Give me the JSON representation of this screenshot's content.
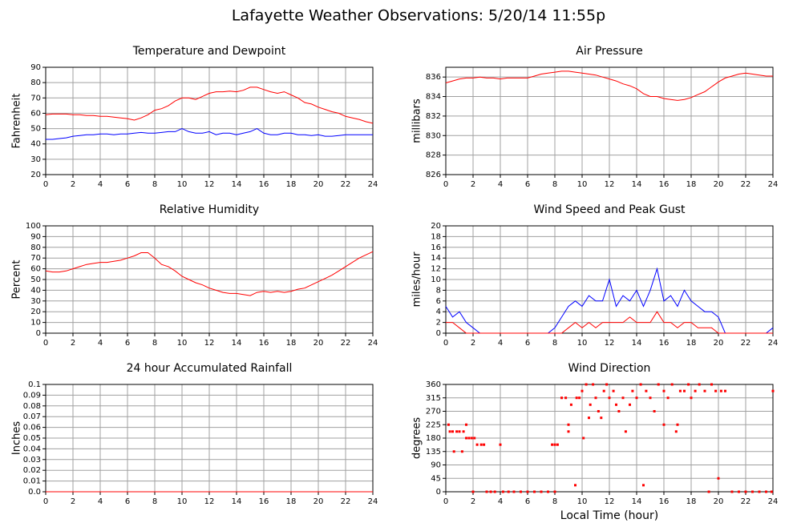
{
  "title": "Lafayette Weather Observations: 5/20/14 11:55p",
  "chart_data": [
    {
      "type": "line",
      "title": "Temperature and Dewpoint",
      "y_label": "Fahrenheit",
      "xlim": [
        0,
        24
      ],
      "xticks": [
        0,
        2,
        4,
        6,
        8,
        10,
        12,
        14,
        16,
        18,
        20,
        22,
        24
      ],
      "ylim": [
        20,
        90
      ],
      "yticks": [
        20,
        30,
        40,
        50,
        60,
        70,
        80,
        90
      ],
      "grid": true,
      "x": [
        0,
        0.5,
        1,
        1.5,
        2,
        2.5,
        3,
        3.5,
        4,
        4.5,
        5,
        5.5,
        6,
        6.5,
        7,
        7.5,
        8,
        8.5,
        9,
        9.5,
        10,
        10.5,
        11,
        11.5,
        12,
        12.5,
        13,
        13.5,
        14,
        14.5,
        15,
        15.5,
        16,
        16.5,
        17,
        17.5,
        18,
        18.5,
        19,
        19.5,
        20,
        20.5,
        21,
        21.5,
        22,
        22.5,
        23,
        23.5,
        24
      ],
      "series": [
        {
          "color": "#ff0000",
          "values": [
            59,
            59.5,
            59.5,
            59.5,
            59,
            59,
            58.5,
            58.5,
            58,
            58,
            57.5,
            57,
            56.5,
            55.5,
            57,
            59,
            62,
            63,
            65,
            68,
            70,
            70,
            69,
            71,
            73,
            74,
            74,
            74.5,
            74,
            75,
            77,
            77,
            75.5,
            74,
            73,
            74,
            72,
            70,
            67,
            66,
            64,
            62.5,
            61,
            60,
            58,
            57,
            56,
            54.5,
            53.5
          ]
        },
        {
          "color": "#0000ff",
          "values": [
            43,
            43,
            43.5,
            44,
            45,
            45.5,
            46,
            46,
            46.5,
            46.5,
            46,
            46.5,
            46.5,
            47,
            47.5,
            47,
            47,
            47.5,
            48,
            48,
            50,
            48,
            47,
            47,
            48,
            46,
            47,
            47,
            46,
            47,
            48,
            50,
            47,
            46,
            46,
            47,
            47,
            46,
            46,
            45.5,
            46,
            45,
            45,
            45.5,
            46,
            46,
            46,
            46,
            46
          ]
        }
      ]
    },
    {
      "type": "line",
      "title": "Air Pressure",
      "y_label": "millibars",
      "xlim": [
        0,
        24
      ],
      "xticks": [
        0,
        2,
        4,
        6,
        8,
        10,
        12,
        14,
        16,
        18,
        20,
        22,
        24
      ],
      "ylim": [
        826,
        837
      ],
      "yticks": [
        826,
        828,
        830,
        832,
        834,
        836
      ],
      "grid": true,
      "x": [
        0,
        0.5,
        1,
        1.5,
        2,
        2.5,
        3,
        3.5,
        4,
        4.5,
        5,
        5.5,
        6,
        6.5,
        7,
        7.5,
        8,
        8.5,
        9,
        9.5,
        10,
        10.5,
        11,
        11.5,
        12,
        12.5,
        13,
        13.5,
        14,
        14.5,
        15,
        15.5,
        16,
        16.5,
        17,
        17.5,
        18,
        18.5,
        19,
        19.5,
        20,
        20.5,
        21,
        21.5,
        22,
        22.5,
        23,
        23.5,
        24
      ],
      "series": [
        {
          "color": "#ff0000",
          "values": [
            835.4,
            835.6,
            835.8,
            835.9,
            835.9,
            836,
            835.9,
            835.9,
            835.8,
            835.9,
            835.9,
            835.9,
            835.9,
            836.1,
            836.3,
            836.4,
            836.5,
            836.6,
            836.6,
            836.5,
            836.4,
            836.3,
            836.2,
            836,
            835.8,
            835.6,
            835.3,
            835.1,
            834.8,
            834.3,
            834,
            834,
            833.8,
            833.7,
            833.6,
            833.7,
            833.9,
            834.2,
            834.5,
            835,
            835.5,
            835.9,
            836.1,
            836.3,
            836.4,
            836.3,
            836.2,
            836.1,
            836.1
          ]
        }
      ]
    },
    {
      "type": "line",
      "title": "Relative Humidity",
      "y_label": "Percent",
      "xlim": [
        0,
        24
      ],
      "xticks": [
        0,
        2,
        4,
        6,
        8,
        10,
        12,
        14,
        16,
        18,
        20,
        22,
        24
      ],
      "ylim": [
        0,
        100
      ],
      "yticks": [
        0,
        10,
        20,
        30,
        40,
        50,
        60,
        70,
        80,
        90,
        100
      ],
      "grid": true,
      "x": [
        0,
        0.5,
        1,
        1.5,
        2,
        2.5,
        3,
        3.5,
        4,
        4.5,
        5,
        5.5,
        6,
        6.5,
        7,
        7.5,
        8,
        8.5,
        9,
        9.5,
        10,
        10.5,
        11,
        11.5,
        12,
        12.5,
        13,
        13.5,
        14,
        14.5,
        15,
        15.5,
        16,
        16.5,
        17,
        17.5,
        18,
        18.5,
        19,
        19.5,
        20,
        20.5,
        21,
        21.5,
        22,
        22.5,
        23,
        23.5,
        24
      ],
      "series": [
        {
          "color": "#ff0000",
          "values": [
            58,
            57,
            57,
            58,
            60,
            62,
            64,
            65,
            66,
            66,
            67,
            68,
            70,
            72,
            75,
            75,
            70,
            64,
            62,
            58,
            53,
            50,
            47,
            45,
            42,
            40,
            38,
            37,
            37,
            36,
            35,
            38,
            39,
            38,
            39,
            38,
            39,
            41,
            42,
            45,
            48,
            51,
            54,
            58,
            62,
            66,
            70,
            73,
            76
          ]
        }
      ]
    },
    {
      "type": "line",
      "title": "Wind Speed and Peak Gust",
      "y_label": "miles/hour",
      "xlim": [
        0,
        24
      ],
      "xticks": [
        0,
        2,
        4,
        6,
        8,
        10,
        12,
        14,
        16,
        18,
        20,
        22,
        24
      ],
      "ylim": [
        0,
        20
      ],
      "yticks": [
        0,
        2,
        4,
        6,
        8,
        10,
        12,
        14,
        16,
        18,
        20
      ],
      "grid": true,
      "x": [
        0,
        0.5,
        1,
        1.5,
        2,
        2.5,
        3,
        3.5,
        4,
        4.5,
        5,
        5.5,
        6,
        6.5,
        7,
        7.5,
        8,
        8.5,
        9,
        9.5,
        10,
        10.5,
        11,
        11.5,
        12,
        12.5,
        13,
        13.5,
        14,
        14.5,
        15,
        15.5,
        16,
        16.5,
        17,
        17.5,
        18,
        18.5,
        19,
        19.5,
        20,
        20.5,
        21,
        21.5,
        22,
        22.5,
        23,
        23.5,
        24
      ],
      "series": [
        {
          "color": "#0000ff",
          "values": [
            5,
            3,
            4,
            2,
            1,
            0,
            0,
            0,
            0,
            0,
            0,
            0,
            0,
            0,
            0,
            0,
            1,
            3,
            5,
            6,
            5,
            7,
            6,
            6,
            10,
            5,
            7,
            6,
            8,
            5,
            8,
            12,
            6,
            7,
            5,
            8,
            6,
            5,
            4,
            4,
            3,
            0,
            0,
            0,
            0,
            0,
            0,
            0,
            1
          ]
        },
        {
          "color": "#ff0000",
          "values": [
            2,
            2,
            1,
            0,
            0,
            0,
            0,
            0,
            0,
            0,
            0,
            0,
            0,
            0,
            0,
            0,
            0,
            0,
            1,
            2,
            1,
            2,
            1,
            2,
            2,
            2,
            2,
            3,
            2,
            2,
            2,
            4,
            2,
            2,
            1,
            2,
            2,
            1,
            1,
            1,
            0,
            0,
            0,
            0,
            0,
            0,
            0,
            0,
            0
          ]
        }
      ]
    },
    {
      "type": "line",
      "title": "24 hour Accumulated Rainfall",
      "y_label": "Inches",
      "xlim": [
        0,
        24
      ],
      "xticks": [
        0,
        2,
        4,
        6,
        8,
        10,
        12,
        14,
        16,
        18,
        20,
        22,
        24
      ],
      "ylim": [
        0,
        0.1
      ],
      "yticks": [
        {
          "value": 0,
          "label": "0.0"
        },
        0.01,
        0.02,
        0.03,
        0.04,
        0.05,
        0.06,
        0.07,
        0.08,
        0.09,
        0.1
      ],
      "grid": true,
      "x": [
        0,
        0.5,
        1,
        1.5,
        2,
        2.5,
        3,
        3.5,
        4,
        4.5,
        5,
        5.5,
        6,
        6.5,
        7,
        7.5,
        8,
        8.5,
        9,
        9.5,
        10,
        10.5,
        11,
        11.5,
        12,
        12.5,
        13,
        13.5,
        14,
        14.5,
        15,
        15.5,
        16,
        16.5,
        17,
        17.5,
        18,
        18.5,
        19,
        19.5,
        20,
        20.5,
        21,
        21.5,
        22,
        22.5,
        23,
        23.5,
        24
      ],
      "series": [
        {
          "color": "#ff0000",
          "values": [
            0,
            0,
            0,
            0,
            0,
            0,
            0,
            0,
            0,
            0,
            0,
            0,
            0,
            0,
            0,
            0,
            0,
            0,
            0,
            0,
            0,
            0,
            0,
            0,
            0,
            0,
            0,
            0,
            0,
            0,
            0,
            0,
            0,
            0,
            0,
            0,
            0,
            0,
            0,
            0,
            0,
            0,
            0,
            0,
            0,
            0,
            0,
            0,
            0
          ]
        }
      ]
    },
    {
      "type": "scatter",
      "title": "Wind Direction",
      "y_label": "degrees",
      "x_label": "Local Time (hour)",
      "xlim": [
        0,
        24
      ],
      "xticks": [
        0,
        2,
        4,
        6,
        8,
        10,
        12,
        14,
        16,
        18,
        20,
        22,
        24
      ],
      "ylim": [
        0,
        360
      ],
      "yticks": [
        0,
        45,
        90,
        135,
        180,
        225,
        270,
        315,
        360
      ],
      "grid": true,
      "x": [
        0.2,
        0.3,
        0.5,
        0.6,
        0.8,
        1,
        1.2,
        1.3,
        1.5,
        1.5,
        1.7,
        1.9,
        2,
        2.1,
        2.3,
        2.6,
        2.8,
        3,
        3.3,
        3.6,
        4,
        4.2,
        4.6,
        5,
        5.5,
        6,
        6.5,
        7,
        7.5,
        7.8,
        8,
        8.2,
        8,
        8.5,
        8.8,
        9,
        9,
        9.2,
        9.5,
        9.6,
        9.8,
        10,
        10.1,
        10.3,
        10.5,
        10.6,
        10.8,
        11,
        11.2,
        11.4,
        11.6,
        11.8,
        12,
        12.3,
        12.5,
        12.7,
        13,
        13.2,
        13.5,
        13.7,
        14,
        14.3,
        14.5,
        14.7,
        15,
        15.3,
        15.6,
        16,
        16,
        16.3,
        16.6,
        16.9,
        17,
        17.2,
        17.5,
        17.8,
        18,
        18.3,
        18.6,
        19,
        19.3,
        19.5,
        19.8,
        20,
        20.2,
        20.5,
        21,
        21.5,
        22,
        22.5,
        23,
        23.5,
        23.9,
        24
      ],
      "series": [
        {
          "color": "#ff0000",
          "values": [
            225,
            202,
            202,
            135,
            202,
            202,
            135,
            202,
            225,
            180,
            180,
            180,
            0,
            180,
            158,
            158,
            158,
            0,
            0,
            0,
            158,
            0,
            0,
            0,
            0,
            0,
            0,
            0,
            0,
            158,
            158,
            158,
            0,
            315,
            315,
            202,
            225,
            292,
            22,
            315,
            315,
            338,
            180,
            360,
            248,
            292,
            360,
            315,
            270,
            248,
            338,
            360,
            315,
            338,
            292,
            270,
            315,
            202,
            292,
            338,
            315,
            360,
            22,
            338,
            315,
            270,
            360,
            225,
            338,
            315,
            360,
            202,
            225,
            338,
            338,
            360,
            315,
            338,
            360,
            338,
            0,
            360,
            338,
            45,
            338,
            338,
            0,
            0,
            0,
            0,
            0,
            0,
            0,
            338
          ]
        }
      ]
    }
  ]
}
